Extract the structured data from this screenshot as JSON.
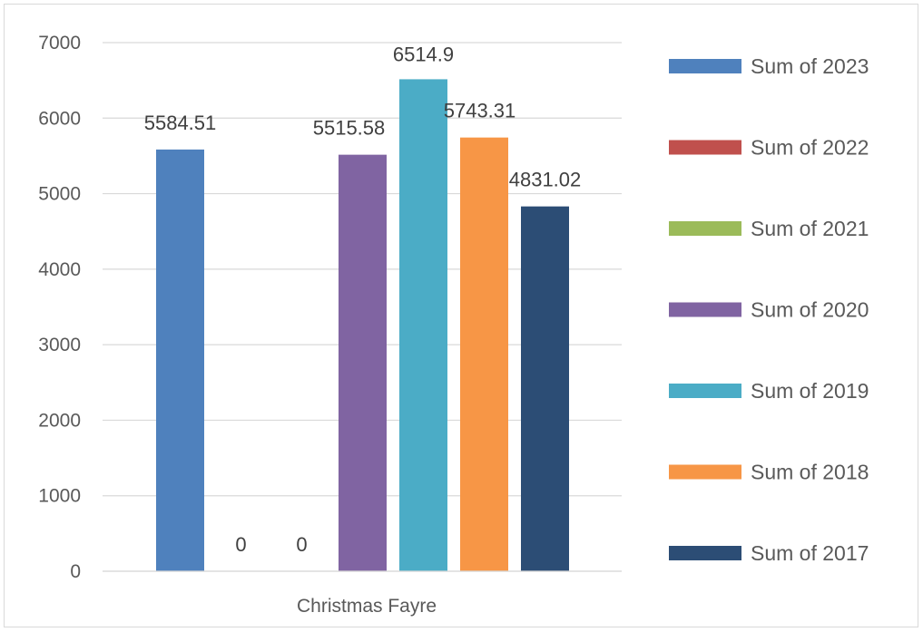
{
  "chart_data": {
    "type": "bar",
    "categories": [
      "Christmas Fayre"
    ],
    "series": [
      {
        "name": "Sum of 2023",
        "values": [
          5584.51
        ],
        "label": "5584.51",
        "color": "#4f81bd"
      },
      {
        "name": "Sum of 2022",
        "values": [
          0
        ],
        "label": "0",
        "color": "#c0504d"
      },
      {
        "name": "Sum of 2021",
        "values": [
          0
        ],
        "label": "0",
        "color": "#9bbb59"
      },
      {
        "name": "Sum of 2020",
        "values": [
          5515.58
        ],
        "label": "5515.58",
        "color": "#8064a2"
      },
      {
        "name": "Sum of 2019",
        "values": [
          6514.9
        ],
        "label": "6514.9",
        "color": "#4bacc6"
      },
      {
        "name": "Sum of 2018",
        "values": [
          5743.31
        ],
        "label": "5743.31",
        "color": "#f79646"
      },
      {
        "name": "Sum of 2017",
        "values": [
          4831.02
        ],
        "label": "4831.02",
        "color": "#2c4d75"
      }
    ],
    "ylim": [
      0,
      7000
    ],
    "yticks": [
      "0",
      "1000",
      "2000",
      "3000",
      "4000",
      "5000",
      "6000",
      "7000"
    ],
    "grid": true,
    "legend_position": "right",
    "title": "",
    "xlabel": "",
    "ylabel": ""
  }
}
